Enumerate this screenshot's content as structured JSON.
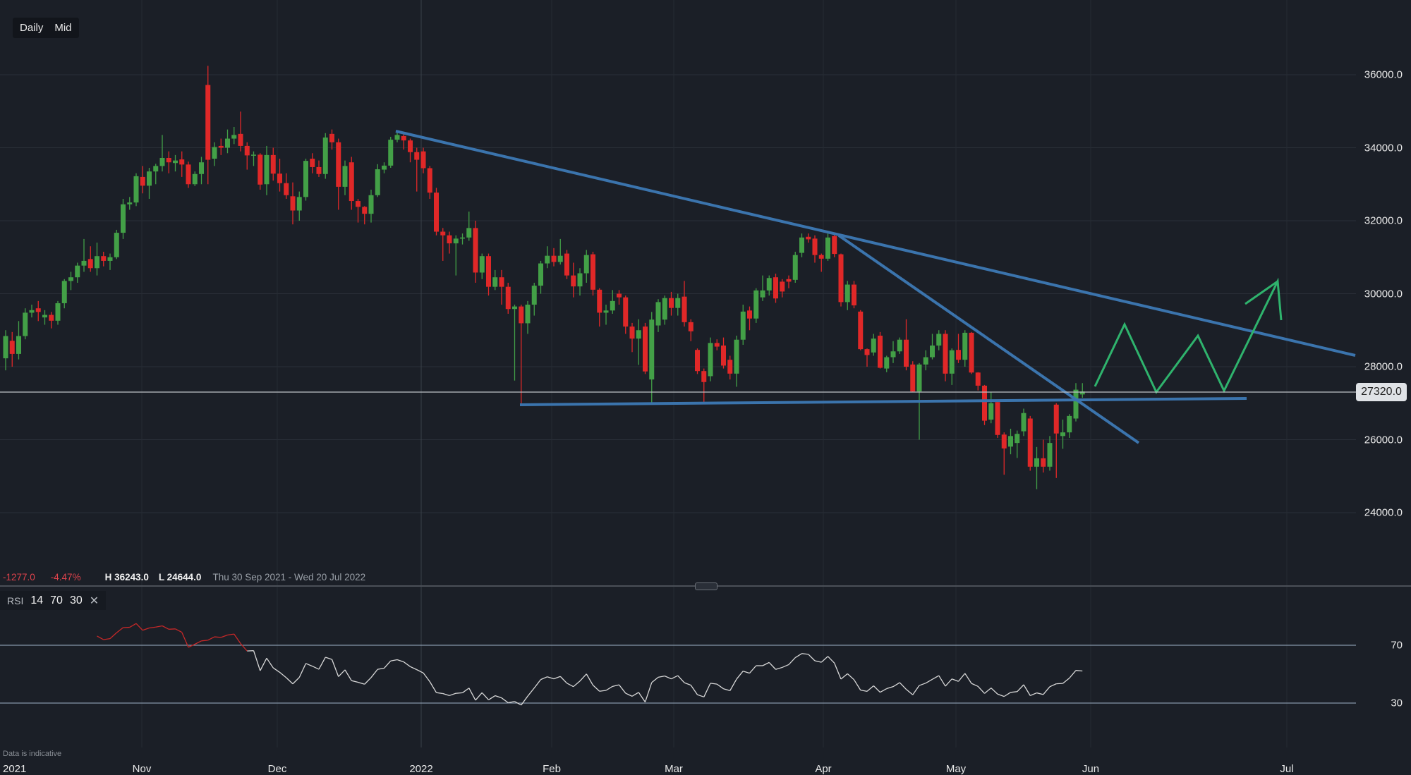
{
  "toolbar": {
    "timeframe": "Daily",
    "price_type": "Mid"
  },
  "stats": {
    "change": "-1277.0",
    "change_pct": "-4.47%",
    "high": "H 36243.0",
    "low": "L 24644.0",
    "range": "Thu 30 Sep 2021 - Wed 20 Jul 2022"
  },
  "current_price": "27320.0",
  "rsi_header": {
    "name": "RSI",
    "period": "14",
    "upper": "70",
    "lower": "30",
    "close_icon": "close-x-icon"
  },
  "footer_note": "Data is indicative",
  "colors": {
    "background": "#1b1f27",
    "up": "#43a047",
    "down": "#e02828",
    "trendline": "#3b74ad",
    "projection": "#2fb36d",
    "rsi_line": "#d8d8d8",
    "rsi_overbought": "#c62828"
  },
  "chart_data": {
    "type": "candlestick",
    "title": "",
    "y_ticks": [
      "36000.0",
      "34000.0",
      "32000.0",
      "30000.0",
      "28000.0",
      "26000.0",
      "24000.0"
    ],
    "ylim": [
      22200,
      37500
    ],
    "x_ticks": [
      "2021",
      "Nov",
      "Dec",
      "2022",
      "Feb",
      "Mar",
      "Apr",
      "May",
      "Jun",
      "Jul"
    ],
    "grid": true,
    "candles_ohlc": [
      [
        28230,
        29000,
        27900,
        28840
      ],
      [
        28710,
        28950,
        28000,
        28350
      ],
      [
        28350,
        29250,
        28200,
        28840
      ],
      [
        28840,
        29600,
        28750,
        29480
      ],
      [
        29480,
        29700,
        29350,
        29550
      ],
      [
        29600,
        29800,
        29250,
        29500
      ],
      [
        29350,
        29550,
        29150,
        29420
      ],
      [
        29420,
        29500,
        29050,
        29260
      ],
      [
        29260,
        29800,
        29150,
        29740
      ],
      [
        29740,
        30400,
        29600,
        30350
      ],
      [
        30350,
        30600,
        30100,
        30450
      ],
      [
        30450,
        30850,
        30300,
        30770
      ],
      [
        30770,
        31500,
        30600,
        30900
      ],
      [
        30950,
        31300,
        30600,
        30700
      ],
      [
        30700,
        31400,
        30500,
        31030
      ],
      [
        31030,
        31150,
        30750,
        30900
      ],
      [
        30900,
        31100,
        30650,
        31000
      ],
      [
        31000,
        31750,
        30950,
        31670
      ],
      [
        31670,
        32600,
        31500,
        32450
      ],
      [
        32450,
        32650,
        32300,
        32500
      ],
      [
        32500,
        33300,
        32400,
        33220
      ],
      [
        33200,
        33500,
        32750,
        32960
      ],
      [
        32960,
        33450,
        32600,
        33350
      ],
      [
        33350,
        33560,
        33000,
        33500
      ],
      [
        33500,
        34350,
        33350,
        33720
      ],
      [
        33720,
        33900,
        33300,
        33600
      ],
      [
        33580,
        33800,
        33350,
        33650
      ],
      [
        33680,
        33900,
        33200,
        33540
      ],
      [
        33540,
        33620,
        32900,
        33000
      ],
      [
        33000,
        33350,
        32950,
        33280
      ],
      [
        33280,
        33750,
        33000,
        33600
      ],
      [
        35720,
        36243,
        33000,
        33670
      ],
      [
        33700,
        34150,
        33500,
        34020
      ],
      [
        34050,
        34250,
        33800,
        34000
      ],
      [
        34000,
        34500,
        33850,
        34250
      ],
      [
        34250,
        34570,
        34100,
        34350
      ],
      [
        34380,
        34990,
        33900,
        34050
      ],
      [
        34050,
        34150,
        33400,
        33790
      ],
      [
        33800,
        33900,
        33500,
        33810
      ],
      [
        33810,
        33850,
        32850,
        32990
      ],
      [
        33000,
        34050,
        32700,
        33800
      ],
      [
        33800,
        34000,
        33100,
        33290
      ],
      [
        33290,
        33700,
        32800,
        33030
      ],
      [
        33030,
        33300,
        32600,
        32700
      ],
      [
        32670,
        33050,
        31900,
        32280
      ],
      [
        32280,
        32800,
        32000,
        32650
      ],
      [
        32650,
        33700,
        32550,
        33640
      ],
      [
        33700,
        33850,
        33300,
        33470
      ],
      [
        33470,
        33650,
        33200,
        33280
      ],
      [
        33280,
        34400,
        33150,
        34280
      ],
      [
        34380,
        34500,
        33950,
        34150
      ],
      [
        34150,
        34250,
        32300,
        32930
      ],
      [
        32930,
        33650,
        32700,
        33500
      ],
      [
        33600,
        33750,
        32300,
        32540
      ],
      [
        32540,
        32600,
        31950,
        32380
      ],
      [
        32380,
        32400,
        31900,
        32190
      ],
      [
        32190,
        32850,
        31950,
        32700
      ],
      [
        32700,
        33550,
        32650,
        33410
      ],
      [
        33400,
        33600,
        33300,
        33510
      ],
      [
        33510,
        34300,
        33450,
        34220
      ],
      [
        34220,
        34450,
        34150,
        34350
      ],
      [
        34320,
        34400,
        33950,
        34200
      ],
      [
        34200,
        34250,
        33600,
        33880
      ],
      [
        33880,
        34000,
        32800,
        33670
      ],
      [
        33900,
        34000,
        33300,
        33440
      ],
      [
        33440,
        33500,
        32600,
        32770
      ],
      [
        32770,
        32900,
        31600,
        31700
      ],
      [
        31700,
        31800,
        30900,
        31600
      ],
      [
        31600,
        31700,
        31100,
        31380
      ],
      [
        31380,
        31600,
        30500,
        31510
      ],
      [
        31510,
        31650,
        31350,
        31540
      ],
      [
        31540,
        32250,
        31450,
        31800
      ],
      [
        31800,
        32000,
        30300,
        30580
      ],
      [
        30580,
        31100,
        30400,
        31030
      ],
      [
        31030,
        31100,
        29950,
        30190
      ],
      [
        30190,
        30650,
        30100,
        30450
      ],
      [
        30450,
        30650,
        29700,
        30190
      ],
      [
        30190,
        30300,
        29450,
        29580
      ],
      [
        29580,
        29700,
        27620,
        29650
      ],
      [
        29650,
        29700,
        26970,
        29190
      ],
      [
        29190,
        29800,
        28900,
        29700
      ],
      [
        29700,
        30300,
        29400,
        30220
      ],
      [
        30220,
        30900,
        30000,
        30830
      ],
      [
        30830,
        31300,
        30700,
        31040
      ],
      [
        31040,
        31250,
        30750,
        30870
      ],
      [
        30870,
        31500,
        30800,
        31040
      ],
      [
        31100,
        31200,
        30400,
        30500
      ],
      [
        30500,
        30850,
        29900,
        30200
      ],
      [
        30200,
        30700,
        29950,
        30560
      ],
      [
        30560,
        31200,
        30300,
        31060
      ],
      [
        31080,
        31150,
        29950,
        30110
      ],
      [
        30110,
        30150,
        29100,
        29480
      ],
      [
        29480,
        29700,
        29150,
        29540
      ],
      [
        29540,
        30100,
        29450,
        29800
      ],
      [
        30000,
        30100,
        29700,
        29900
      ],
      [
        29900,
        29950,
        28900,
        29100
      ],
      [
        29100,
        29200,
        28400,
        28770
      ],
      [
        28770,
        29300,
        28050,
        29000
      ],
      [
        29100,
        29200,
        27800,
        27870
      ],
      [
        27650,
        29500,
        26980,
        29290
      ],
      [
        29130,
        29850,
        28950,
        29770
      ],
      [
        29290,
        29950,
        29150,
        29880
      ],
      [
        29880,
        30050,
        29400,
        29610
      ],
      [
        29610,
        30000,
        29400,
        29880
      ],
      [
        29920,
        30350,
        29100,
        29220
      ],
      [
        29220,
        29300,
        28700,
        28970
      ],
      [
        28460,
        28500,
        27800,
        27880
      ],
      [
        27880,
        27950,
        27030,
        27580
      ],
      [
        27740,
        28800,
        27600,
        28650
      ],
      [
        28650,
        28750,
        28450,
        28550
      ],
      [
        28580,
        28800,
        27950,
        28030
      ],
      [
        28190,
        28300,
        27650,
        27810
      ],
      [
        27810,
        28850,
        27450,
        28740
      ],
      [
        28740,
        29700,
        28600,
        29510
      ],
      [
        29540,
        29650,
        29000,
        29320
      ],
      [
        29320,
        30150,
        29200,
        30090
      ],
      [
        29900,
        30500,
        29800,
        30090
      ],
      [
        30090,
        30500,
        29950,
        30430
      ],
      [
        30450,
        30550,
        29750,
        29870
      ],
      [
        30330,
        30400,
        29900,
        30060
      ],
      [
        30400,
        30500,
        30150,
        30330
      ],
      [
        30380,
        31150,
        30300,
        31060
      ],
      [
        31120,
        31650,
        31000,
        31540
      ],
      [
        31560,
        31650,
        31400,
        31490
      ],
      [
        31510,
        31600,
        30850,
        31060
      ],
      [
        31060,
        31100,
        30600,
        30960
      ],
      [
        30960,
        31650,
        30900,
        31540
      ],
      [
        31580,
        31650,
        31000,
        31090
      ],
      [
        31080,
        31100,
        29650,
        29770
      ],
      [
        29770,
        30350,
        29550,
        30250
      ],
      [
        30250,
        30350,
        29600,
        29680
      ],
      [
        29510,
        29550,
        28450,
        28480
      ],
      [
        28480,
        28500,
        28000,
        28320
      ],
      [
        28390,
        28900,
        28300,
        28770
      ],
      [
        28850,
        28950,
        27950,
        27970
      ],
      [
        27950,
        28300,
        27850,
        28260
      ],
      [
        28260,
        28700,
        28100,
        28420
      ],
      [
        28420,
        28800,
        28350,
        28740
      ],
      [
        28740,
        29300,
        27900,
        28000
      ],
      [
        28060,
        28150,
        27300,
        27320
      ],
      [
        27320,
        28100,
        26000,
        28060
      ],
      [
        28060,
        28450,
        27900,
        28260
      ],
      [
        28260,
        28900,
        28200,
        28580
      ],
      [
        28580,
        29000,
        28450,
        28900
      ],
      [
        28900,
        29000,
        27600,
        27810
      ],
      [
        27810,
        28500,
        27500,
        28450
      ],
      [
        28460,
        28900,
        28100,
        28190
      ],
      [
        28190,
        29000,
        28000,
        28930
      ],
      [
        28930,
        28950,
        27800,
        27840
      ],
      [
        27840,
        27850,
        27350,
        27480
      ],
      [
        27480,
        27500,
        26400,
        26520
      ],
      [
        26550,
        27300,
        26450,
        27000
      ],
      [
        27030,
        27100,
        26050,
        26130
      ],
      [
        26140,
        26200,
        25040,
        25760
      ],
      [
        25810,
        26300,
        25600,
        26100
      ],
      [
        25910,
        26250,
        25500,
        26160
      ],
      [
        26230,
        26850,
        26100,
        26730
      ],
      [
        26580,
        26650,
        25150,
        25260
      ],
      [
        25260,
        25800,
        24644,
        25490
      ],
      [
        25490,
        26000,
        25100,
        25260
      ],
      [
        25260,
        26100,
        25150,
        25910
      ],
      [
        26960,
        27000,
        24950,
        26170
      ],
      [
        26100,
        26550,
        25750,
        26200
      ],
      [
        26200,
        26700,
        26050,
        26650
      ],
      [
        26580,
        27550,
        26500,
        27370
      ],
      [
        27240,
        27550,
        27150,
        27320
      ]
    ],
    "rsi": {
      "period": 14,
      "levels": [
        70,
        30
      ],
      "ylim": [
        0,
        100
      ],
      "tick_labels": [
        "70",
        "30"
      ]
    }
  }
}
